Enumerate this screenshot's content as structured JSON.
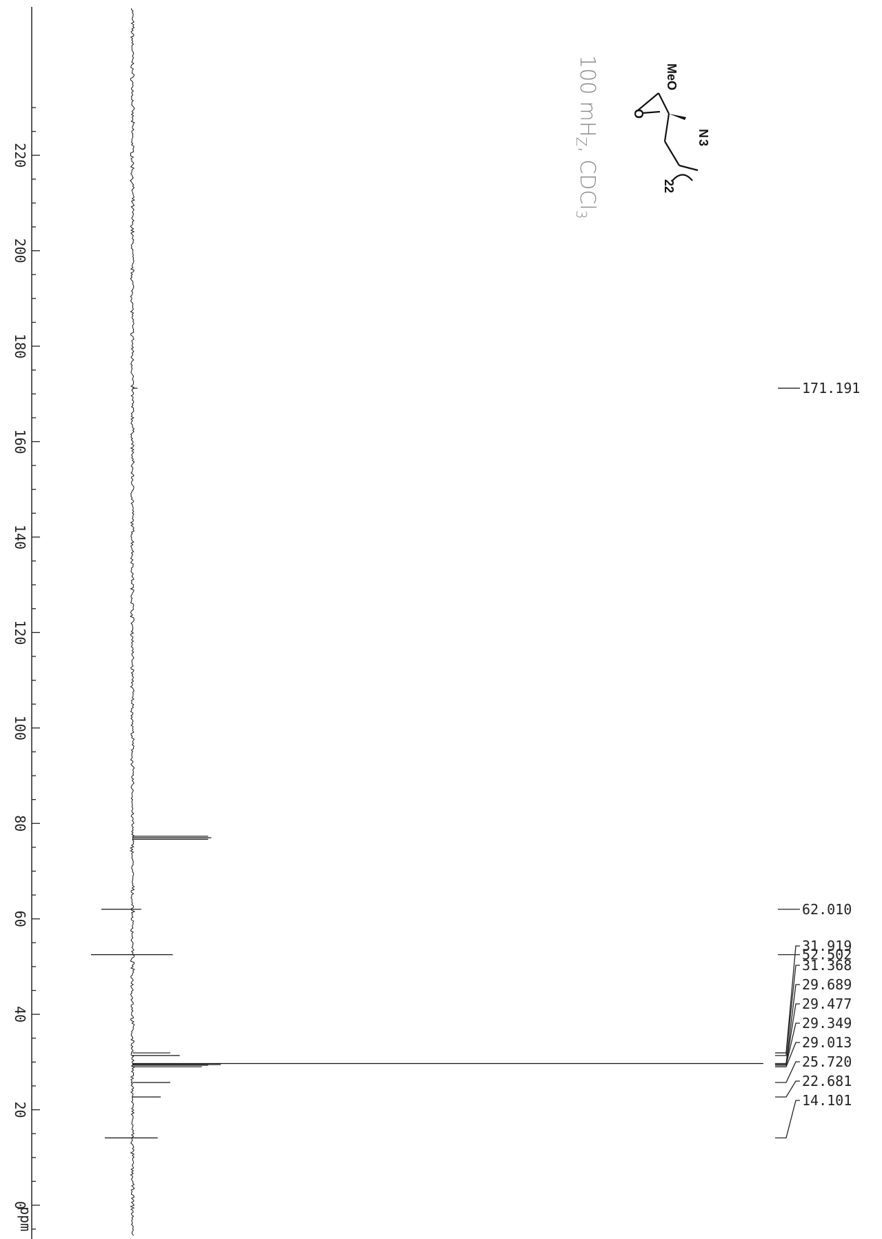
{
  "chart_data": {
    "type": "line",
    "title": "",
    "xlabel": "ppm",
    "ylabel": "",
    "xlim": [
      -12,
      234
    ],
    "x_reversed": false,
    "ticks": [
      220,
      200,
      180,
      160,
      140,
      120,
      100,
      80,
      60,
      40,
      20,
      0
    ],
    "peaks": [
      {
        "ppm": 171.191,
        "height": 0.008,
        "label": "171.191"
      },
      {
        "ppm": 77.32,
        "height": 0.12
      },
      {
        "ppm": 77.0,
        "height": 0.125
      },
      {
        "ppm": 76.68,
        "height": 0.12
      },
      {
        "ppm": 62.01,
        "height": 0.014,
        "label": "62.010"
      },
      {
        "ppm": 52.502,
        "height": 0.064,
        "label": "52.502"
      },
      {
        "ppm": 31.919,
        "height": 0.06,
        "label": "31.919"
      },
      {
        "ppm": 31.368,
        "height": 0.075,
        "label": "31.368"
      },
      {
        "ppm": 29.689,
        "height": 1.0,
        "label": "29.689"
      },
      {
        "ppm": 29.477,
        "height": 0.14,
        "label": "29.477"
      },
      {
        "ppm": 29.349,
        "height": 0.12,
        "label": "29.349"
      },
      {
        "ppm": 29.013,
        "height": 0.11,
        "label": "29.013"
      },
      {
        "ppm": 25.72,
        "height": 0.06,
        "label": "25.720"
      },
      {
        "ppm": 22.681,
        "height": 0.045,
        "label": "22.681"
      },
      {
        "ppm": 14.101,
        "height": 0.04,
        "label": "14.101"
      }
    ]
  },
  "annotation": {
    "line1": "100 mH",
    "sub1": "Z",
    "line2": ", CDCl",
    "sub2": "3"
  },
  "molecule": {
    "meo_label": "MeO",
    "o_label": "O",
    "n_label": "N",
    "n_sub": "3",
    "repeat_label": "22"
  }
}
